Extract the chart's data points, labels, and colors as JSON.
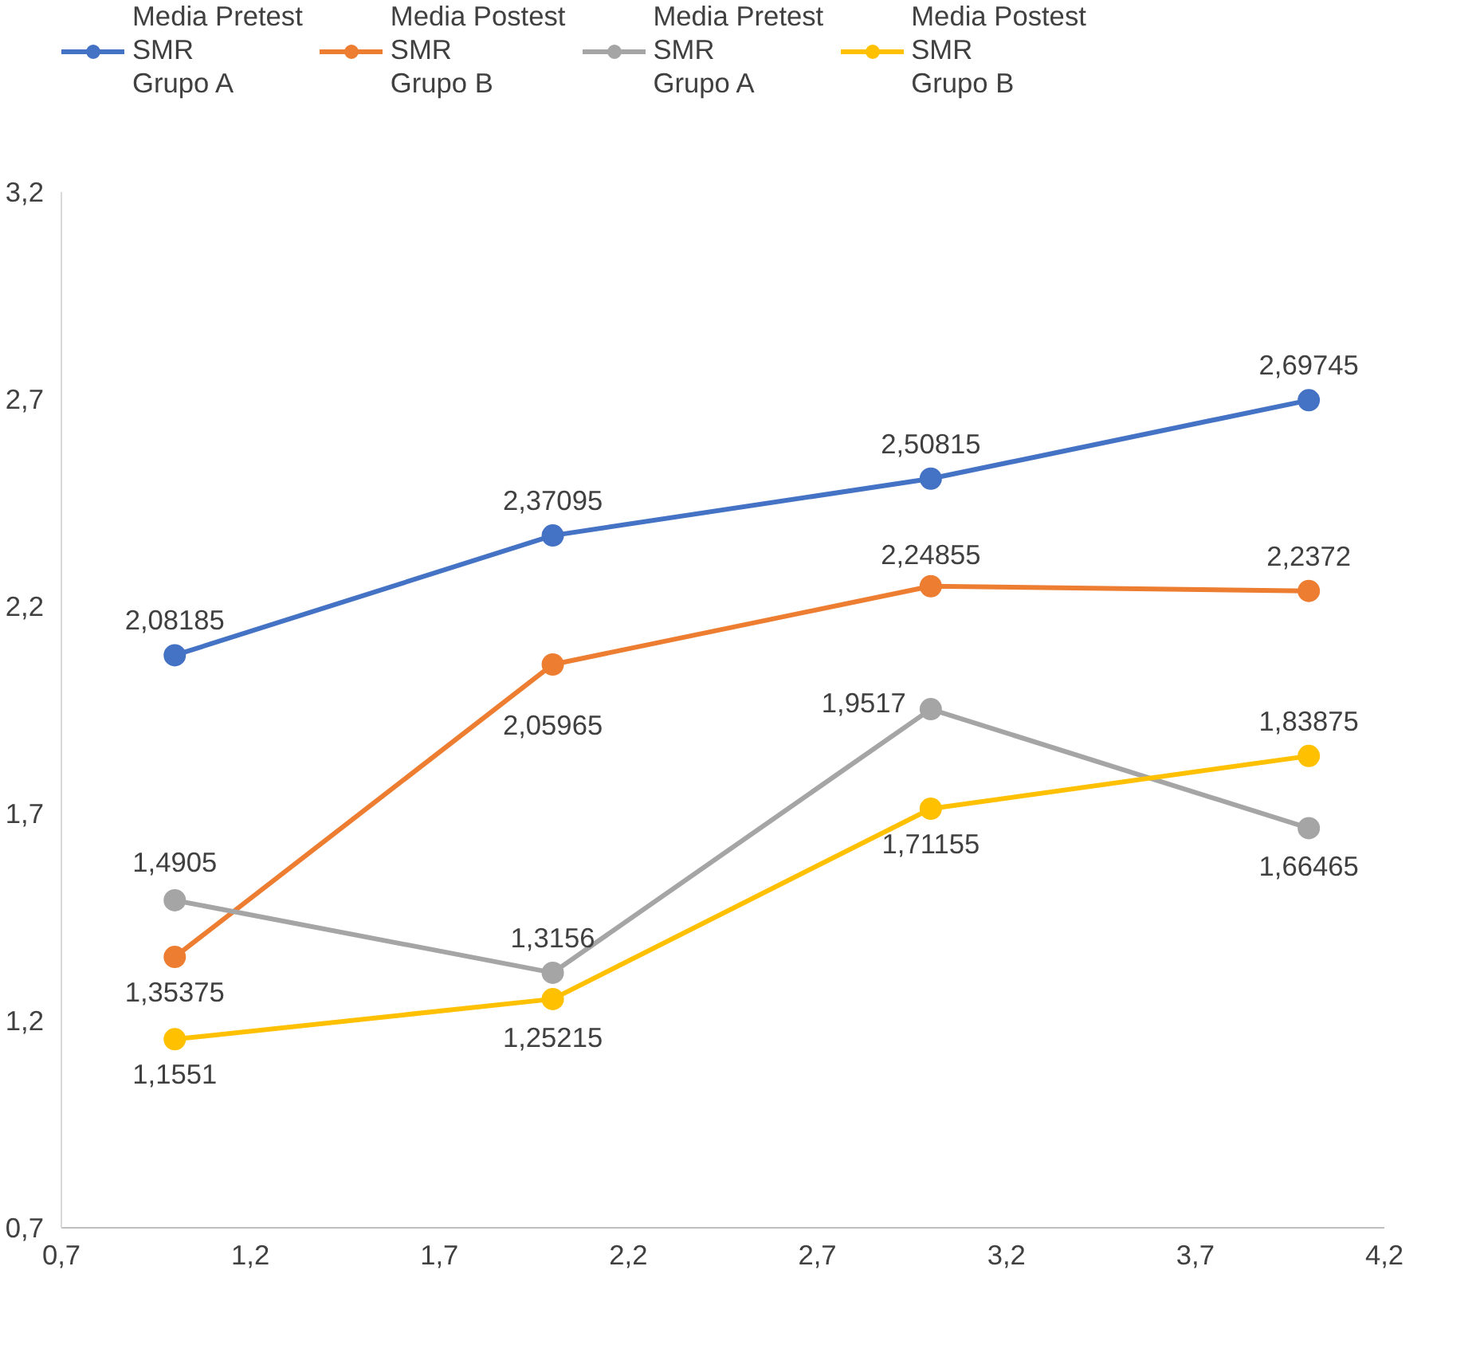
{
  "chart_data": {
    "type": "line",
    "x": [
      1,
      2,
      3,
      4
    ],
    "series": [
      {
        "name": "Media Pretest\nSMR\nGrupo A",
        "color": "#4472c4",
        "values": [
          2.08185,
          2.37095,
          2.50815,
          2.69745
        ],
        "value_labels": [
          "2,08185",
          "2,37095",
          "2,50815",
          "2,69745"
        ]
      },
      {
        "name": "Media Postest\nSMR\nGrupo B",
        "color": "#ed7d31",
        "values": [
          1.35375,
          2.05965,
          2.24855,
          2.2372
        ],
        "value_labels": [
          "1,35375",
          "2,05965",
          "2,24855",
          "2,2372"
        ]
      },
      {
        "name": "Media Pretest\nSMR\nGrupo A",
        "color": "#a5a5a5",
        "values": [
          1.4905,
          1.3156,
          1.9517,
          1.66465
        ],
        "value_labels": [
          "1,4905",
          "1,3156",
          "1,9517",
          "1,66465"
        ]
      },
      {
        "name": "Media Postest\nSMR\nGrupo B",
        "color": "#ffc000",
        "values": [
          1.1551,
          1.25215,
          1.71155,
          1.83875
        ],
        "value_labels": [
          "1,1551",
          "1,25215",
          "1,71155",
          "1,83875"
        ]
      }
    ],
    "xlim": [
      0.7,
      4.2
    ],
    "xticks": [
      {
        "value": 0.7,
        "label": "0,7"
      },
      {
        "value": 1.2,
        "label": "1,2"
      },
      {
        "value": 1.7,
        "label": "1,7"
      },
      {
        "value": 2.2,
        "label": "2,2"
      },
      {
        "value": 2.7,
        "label": "2,7"
      },
      {
        "value": 3.2,
        "label": "3,2"
      },
      {
        "value": 3.7,
        "label": "3,7"
      },
      {
        "value": 4.2,
        "label": "4,2"
      }
    ],
    "ylim": [
      0.7,
      3.2
    ],
    "yticks": [
      {
        "value": 0.7,
        "label": "0,7"
      },
      {
        "value": 1.2,
        "label": "1,2"
      },
      {
        "value": 1.7,
        "label": "1,7"
      },
      {
        "value": 2.2,
        "label": "2,2"
      },
      {
        "value": 2.7,
        "label": "2,7"
      },
      {
        "value": 3.2,
        "label": "3,2"
      }
    ],
    "grid": false,
    "legend": "top",
    "marker": "circle",
    "line_style": "solid"
  }
}
